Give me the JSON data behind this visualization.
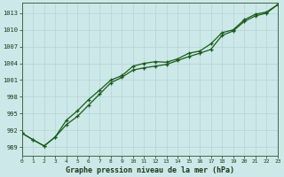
{
  "xlabel": "Graphe pression niveau de la mer (hPa)",
  "background_color": "#cce8e8",
  "grid_color": "#b8d8d8",
  "line_color": "#1a5c1a",
  "x_values": [
    0,
    1,
    2,
    3,
    4,
    5,
    6,
    7,
    8,
    9,
    10,
    11,
    12,
    13,
    14,
    15,
    16,
    17,
    18,
    19,
    20,
    21,
    22,
    23
  ],
  "series1": [
    991.5,
    990.3,
    989.2,
    990.8,
    993.8,
    995.5,
    997.5,
    999.2,
    1001.0,
    1001.8,
    1003.5,
    1004.0,
    1004.3,
    1004.2,
    1004.8,
    1005.8,
    1006.2,
    1007.5,
    1009.5,
    1010.0,
    1011.8,
    1012.8,
    1013.2,
    1014.5
  ],
  "series2": [
    991.5,
    990.3,
    989.2,
    990.8,
    993.0,
    994.5,
    996.5,
    998.5,
    1000.5,
    1001.5,
    1002.8,
    1003.2,
    1003.5,
    1003.8,
    1004.5,
    1005.2,
    1005.8,
    1006.5,
    1009.0,
    1009.8,
    1011.5,
    1012.5,
    1013.0,
    1014.5
  ],
  "ylim_min": 987.5,
  "ylim_max": 1014.8,
  "yticks": [
    989,
    992,
    995,
    998,
    1001,
    1004,
    1007,
    1010,
    1013
  ],
  "xlim_min": 0,
  "xlim_max": 23
}
